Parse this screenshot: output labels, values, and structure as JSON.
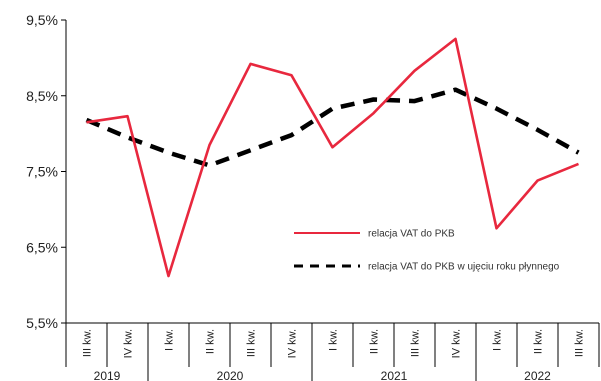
{
  "chart_data": {
    "type": "line",
    "categories": [
      "III kw.",
      "IV kw.",
      "I kw.",
      "II kw.",
      "III kw.",
      "IV kw.",
      "I kw.",
      "II kw.",
      "III kw.",
      "IV kw.",
      "I kw.",
      "II kw.",
      "III kw."
    ],
    "year_groups": [
      {
        "label": "2019",
        "span": 2
      },
      {
        "label": "2020",
        "span": 4
      },
      {
        "label": "2021",
        "span": 4
      },
      {
        "label": "2022",
        "span": 3
      }
    ],
    "series": [
      {
        "name": "relacja VAT do PKB",
        "values": [
          8.15,
          8.23,
          6.12,
          7.85,
          8.92,
          8.77,
          7.82,
          8.27,
          8.83,
          9.25,
          6.75,
          7.38,
          7.6
        ],
        "color": "#e8283e",
        "style": "solid"
      },
      {
        "name": "relacja VAT do PKB w ujęciu roku płynnego",
        "values": [
          8.18,
          7.95,
          7.75,
          7.58,
          7.78,
          7.98,
          8.33,
          8.45,
          8.43,
          8.58,
          8.33,
          8.05,
          7.75
        ],
        "color": "#000000",
        "style": "dashed"
      }
    ],
    "yticks": [
      "9,5%",
      "8,5%",
      "7,5%",
      "6,5%",
      "5,5%"
    ],
    "ytick_values": [
      9.5,
      8.5,
      7.5,
      6.5,
      5.5
    ],
    "ylim": [
      5.5,
      9.5
    ],
    "grid": false,
    "legend_position": "bottom-right"
  }
}
